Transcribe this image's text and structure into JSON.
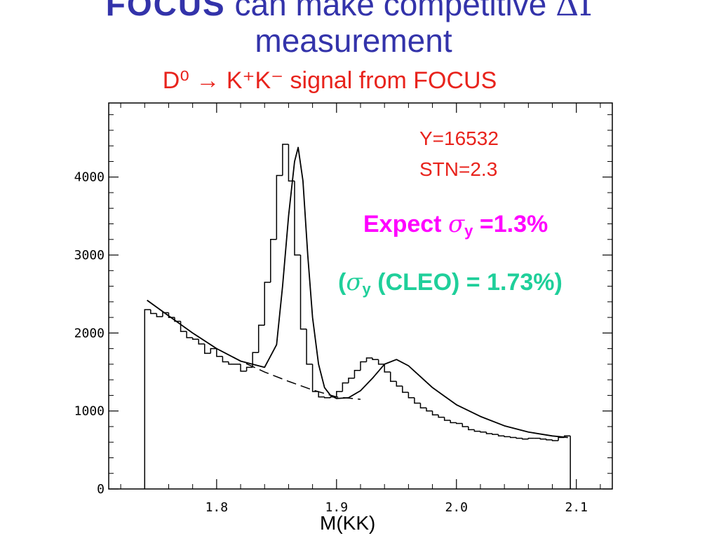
{
  "slide": {
    "title_brand": "FOCUS",
    "title_rest": " can make competitive ",
    "title_delta": "ΔΓ",
    "title_line2": "measurement"
  },
  "chart_data": {
    "type": "histogram",
    "title": "D⁰ → K⁺K⁻ signal from FOCUS",
    "title_color": "#e8231c",
    "xlabel": "M(KK)",
    "xlim": [
      1.71,
      2.13
    ],
    "ylim": [
      0,
      4950
    ],
    "xticks": [
      1.8,
      1.9,
      2.0,
      2.1
    ],
    "xtick_labels": [
      "1.8",
      "1.9",
      "2.0",
      "2.1"
    ],
    "yticks": [
      0,
      1000,
      2000,
      3000,
      4000
    ],
    "ytick_labels": [
      "0",
      "1000",
      "2000",
      "3000",
      "4000"
    ],
    "grid": false,
    "histogram": {
      "x_start": 1.74,
      "bin_width": 0.005,
      "counts": [
        2300,
        2250,
        2210,
        2260,
        2200,
        2150,
        2020,
        1940,
        1920,
        1860,
        1740,
        1800,
        1700,
        1630,
        1600,
        1600,
        1510,
        1560,
        1750,
        2100,
        2650,
        3200,
        4020,
        4420,
        3950,
        3000,
        2050,
        1600,
        1250,
        1180,
        1170,
        1180,
        1250,
        1360,
        1420,
        1520,
        1630,
        1680,
        1660,
        1600,
        1500,
        1380,
        1320,
        1240,
        1170,
        1100,
        1040,
        1000,
        950,
        920,
        880,
        850,
        840,
        800,
        760,
        740,
        730,
        710,
        700,
        680,
        670,
        660,
        650,
        640,
        650,
        650,
        640,
        630,
        620,
        660,
        680
      ]
    },
    "fit_curve": {
      "x": [
        1.742,
        1.76,
        1.78,
        1.8,
        1.82,
        1.84,
        1.85,
        1.855,
        1.86,
        1.865,
        1.868,
        1.872,
        1.876,
        1.88,
        1.885,
        1.89,
        1.895,
        1.9,
        1.91,
        1.92,
        1.93,
        1.94,
        1.95,
        1.96,
        1.97,
        1.98,
        2.0,
        2.02,
        2.04,
        2.06,
        2.08,
        2.093
      ],
      "y": [
        2420,
        2220,
        2000,
        1800,
        1640,
        1560,
        1850,
        2600,
        3500,
        4200,
        4380,
        3950,
        3000,
        2200,
        1600,
        1300,
        1200,
        1160,
        1170,
        1260,
        1420,
        1600,
        1660,
        1580,
        1440,
        1300,
        1080,
        930,
        810,
        730,
        680,
        660
      ]
    },
    "background_curve": {
      "x": [
        1.742,
        1.76,
        1.78,
        1.8,
        1.82,
        1.84,
        1.86,
        1.88,
        1.9,
        1.92
      ],
      "y": [
        2420,
        2220,
        2000,
        1800,
        1640,
        1500,
        1380,
        1270,
        1180,
        1150
      ]
    },
    "annotations": {
      "yield": "Y=16532",
      "stn": "STN=2.3",
      "expect_prefix": "Expect ",
      "expect_sigma": "σ",
      "expect_sub": "y",
      "expect_value": " =1.3%",
      "cleo_open": "(",
      "cleo_sigma": "σ",
      "cleo_sub": "y",
      "cleo_rest": " (CLEO) = 1.73%)"
    }
  }
}
